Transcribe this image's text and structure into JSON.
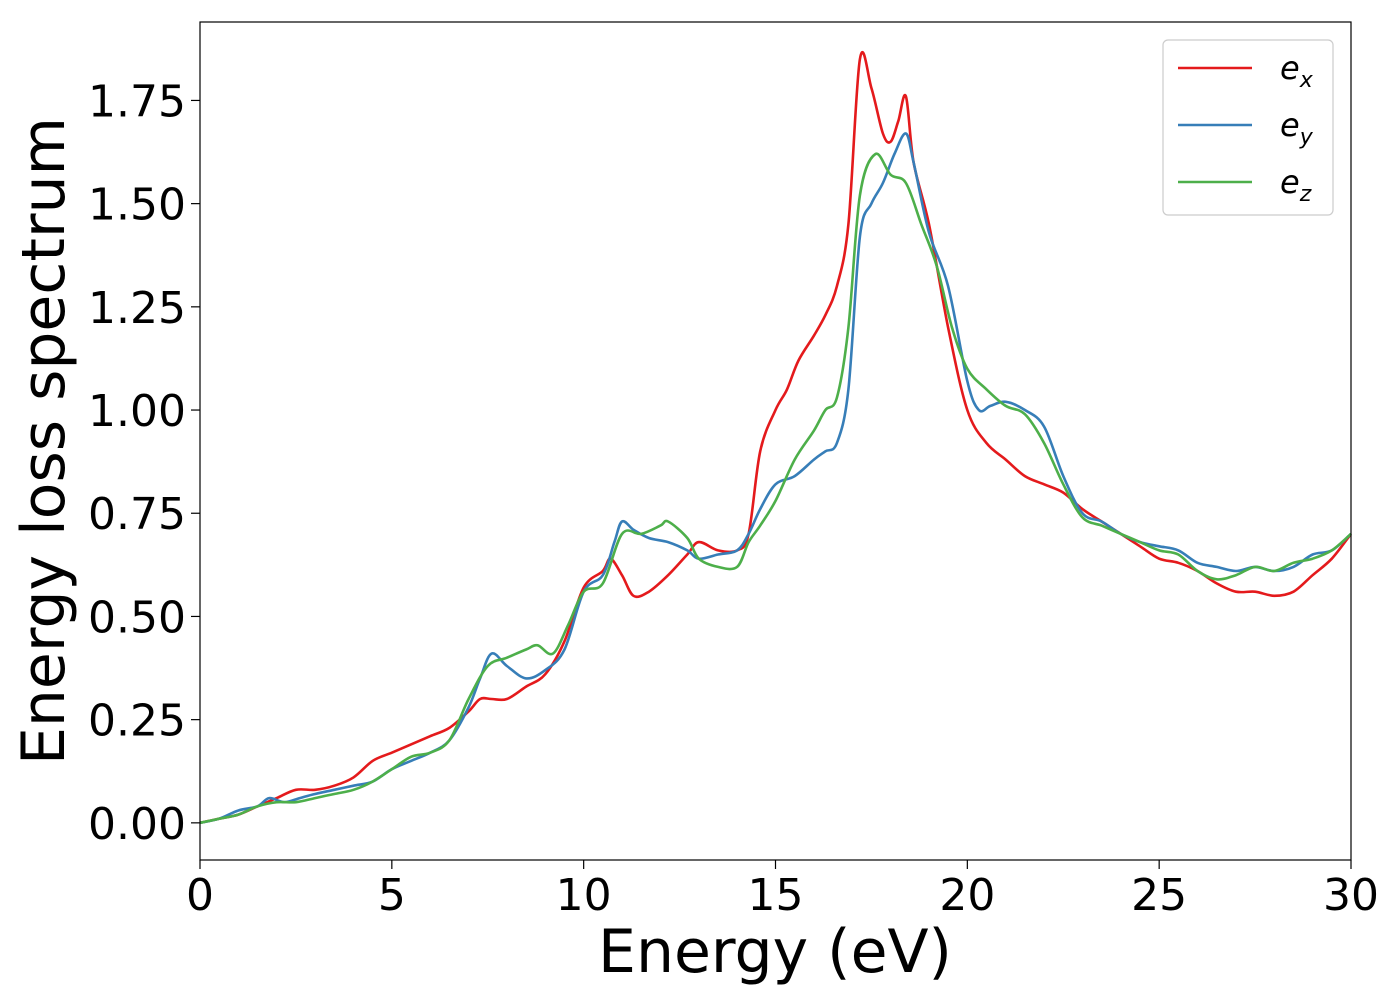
{
  "chart_data": {
    "type": "line",
    "xlabel": "Energy (eV)",
    "ylabel": "Energy loss spectrum",
    "xlim": [
      0,
      30
    ],
    "ylim": [
      -0.09,
      1.94
    ],
    "xticks": [
      0,
      5,
      10,
      15,
      20,
      25,
      30
    ],
    "xtick_labels": [
      "0",
      "5",
      "10",
      "15",
      "20",
      "25",
      "30"
    ],
    "yticks": [
      0.0,
      0.25,
      0.5,
      0.75,
      1.0,
      1.25,
      1.5,
      1.75
    ],
    "ytick_labels": [
      "0.00",
      "0.25",
      "0.50",
      "0.75",
      "1.00",
      "1.25",
      "1.50",
      "1.75"
    ],
    "grid": false,
    "legend_position": "top-right",
    "series": [
      {
        "name": "e_x",
        "label_base": "e",
        "label_sub": "x",
        "color": "#e41a1c",
        "x": [
          0,
          0.5,
          1,
          1.5,
          2,
          2.5,
          3,
          3.5,
          4,
          4.5,
          5,
          5.5,
          6,
          6.5,
          7,
          7.3,
          7.6,
          8,
          8.5,
          9,
          9.5,
          10,
          10.5,
          10.7,
          11,
          11.3,
          11.7,
          12.2,
          12.7,
          13,
          13.5,
          14,
          14.3,
          14.6,
          15,
          15.3,
          15.6,
          16,
          16.3,
          16.6,
          16.9,
          17.2,
          17.5,
          17.8,
          18,
          18.2,
          18.4,
          18.6,
          19,
          19.5,
          20,
          20.5,
          21,
          21.5,
          22,
          22.5,
          23,
          23.5,
          24,
          24.5,
          25,
          25.5,
          26,
          26.5,
          27,
          27.5,
          28,
          28.5,
          29,
          29.5,
          30
        ],
        "y": [
          0.0,
          0.01,
          0.02,
          0.04,
          0.06,
          0.08,
          0.08,
          0.09,
          0.11,
          0.15,
          0.17,
          0.19,
          0.21,
          0.23,
          0.27,
          0.3,
          0.3,
          0.3,
          0.33,
          0.36,
          0.44,
          0.57,
          0.61,
          0.64,
          0.6,
          0.55,
          0.56,
          0.6,
          0.65,
          0.68,
          0.66,
          0.66,
          0.7,
          0.9,
          1.0,
          1.05,
          1.12,
          1.18,
          1.23,
          1.3,
          1.45,
          1.85,
          1.78,
          1.67,
          1.65,
          1.7,
          1.76,
          1.6,
          1.45,
          1.2,
          1.0,
          0.92,
          0.88,
          0.84,
          0.82,
          0.8,
          0.76,
          0.73,
          0.7,
          0.67,
          0.64,
          0.63,
          0.61,
          0.58,
          0.56,
          0.56,
          0.55,
          0.56,
          0.6,
          0.64,
          0.7
        ]
      },
      {
        "name": "e_y",
        "label_base": "e",
        "label_sub": "y",
        "color": "#377eb8",
        "x": [
          0,
          0.5,
          1,
          1.5,
          1.8,
          2.2,
          2.6,
          3,
          3.5,
          4,
          4.5,
          5,
          5.5,
          6,
          6.5,
          7,
          7.3,
          7.6,
          8,
          8.5,
          9,
          9.5,
          10,
          10.5,
          10.8,
          11,
          11.3,
          11.7,
          12.2,
          12.7,
          13,
          13.5,
          14,
          14.3,
          14.6,
          15,
          15.5,
          16,
          16.3,
          16.6,
          16.9,
          17.2,
          17.5,
          17.8,
          18.1,
          18.4,
          18.6,
          19,
          19.5,
          20,
          20.3,
          20.6,
          21,
          21.5,
          22,
          22.5,
          23,
          23.5,
          24,
          24.5,
          25,
          25.5,
          26,
          26.5,
          27,
          27.5,
          28,
          28.5,
          29,
          29.5,
          30
        ],
        "y": [
          0.0,
          0.01,
          0.03,
          0.04,
          0.06,
          0.05,
          0.06,
          0.07,
          0.08,
          0.09,
          0.1,
          0.13,
          0.15,
          0.17,
          0.2,
          0.28,
          0.35,
          0.41,
          0.38,
          0.35,
          0.37,
          0.42,
          0.56,
          0.6,
          0.68,
          0.73,
          0.71,
          0.69,
          0.68,
          0.66,
          0.64,
          0.65,
          0.66,
          0.7,
          0.76,
          0.82,
          0.84,
          0.88,
          0.9,
          0.92,
          1.05,
          1.42,
          1.5,
          1.55,
          1.62,
          1.67,
          1.6,
          1.43,
          1.3,
          1.07,
          1.0,
          1.01,
          1.02,
          1.0,
          0.96,
          0.84,
          0.75,
          0.73,
          0.7,
          0.68,
          0.67,
          0.66,
          0.63,
          0.62,
          0.61,
          0.62,
          0.61,
          0.62,
          0.65,
          0.66,
          0.7
        ]
      },
      {
        "name": "e_z",
        "label_base": "e",
        "label_sub": "z",
        "color": "#4daf4a",
        "x": [
          0,
          0.5,
          1,
          1.5,
          2,
          2.5,
          3,
          3.5,
          4,
          4.5,
          5,
          5.5,
          6,
          6.5,
          7,
          7.5,
          8,
          8.5,
          8.8,
          9.2,
          9.6,
          10,
          10.5,
          11,
          11.5,
          12,
          12.2,
          12.7,
          13,
          13.5,
          14,
          14.3,
          14.6,
          15,
          15.5,
          16,
          16.3,
          16.6,
          16.9,
          17.2,
          17.6,
          18,
          18.4,
          18.8,
          19.2,
          19.6,
          20,
          20.5,
          21,
          21.5,
          22,
          22.5,
          23,
          23.5,
          24,
          24.5,
          25,
          25.5,
          26,
          26.5,
          27,
          27.5,
          28,
          28.5,
          29,
          29.5,
          30
        ],
        "y": [
          0.0,
          0.01,
          0.02,
          0.04,
          0.05,
          0.05,
          0.06,
          0.07,
          0.08,
          0.1,
          0.13,
          0.16,
          0.17,
          0.2,
          0.3,
          0.38,
          0.4,
          0.42,
          0.43,
          0.41,
          0.48,
          0.56,
          0.58,
          0.7,
          0.7,
          0.72,
          0.73,
          0.69,
          0.64,
          0.62,
          0.62,
          0.68,
          0.72,
          0.78,
          0.88,
          0.95,
          1.0,
          1.03,
          1.2,
          1.52,
          1.62,
          1.57,
          1.55,
          1.45,
          1.35,
          1.2,
          1.1,
          1.05,
          1.01,
          0.99,
          0.92,
          0.82,
          0.74,
          0.72,
          0.7,
          0.68,
          0.66,
          0.65,
          0.61,
          0.59,
          0.6,
          0.62,
          0.61,
          0.63,
          0.64,
          0.66,
          0.7
        ]
      }
    ]
  }
}
